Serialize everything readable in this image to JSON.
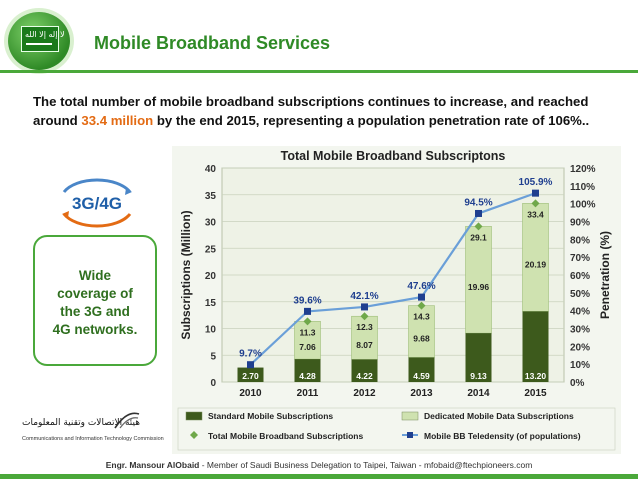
{
  "header": {
    "title": "Mobile Broadband Services",
    "flag_text": "لا إله إلا الله"
  },
  "intro": {
    "text_before": "The total number of mobile broadband subscriptions continues to increase, and reached around ",
    "highlight": "33.4 million",
    "text_after": " by the end 2015, representing a population penetration rate of 106%.."
  },
  "logo": {
    "text": "3G/4G"
  },
  "callout": {
    "lines": [
      "Wide",
      "coverage of",
      "the 3G and",
      "4G networks."
    ]
  },
  "org": {
    "arabic": "هيئة الاتصالات وتقنية المعلومات",
    "english": "Communications and Information Technology Commission"
  },
  "footer": {
    "name": "Engr. Mansour AlObaid",
    "rest": " - Member of Saudi Business Delegation to Taipei, Taiwan -   mfobaid@ftechpioneers.com"
  },
  "colors": {
    "brand_green": "#2f8a26",
    "standard_bar": "#3d5a1c",
    "data_bar": "#cfe2b0",
    "total_marker": "#6fa84a",
    "line": "#6a9fd8",
    "line_marker": "#1f3f8f",
    "highlight": "#e36b14"
  },
  "chart_data": {
    "type": "bar",
    "title": "Total Mobile Broadband Subscriptons",
    "categories": [
      "2010",
      "2011",
      "2012",
      "2013",
      "2014",
      "2015"
    ],
    "ylabel": "Subscriptions (Million)",
    "y2label": "Penetration (%)",
    "ylim": [
      0,
      40
    ],
    "yticks": [
      "0",
      "5",
      "10",
      "15",
      "20",
      "25",
      "30",
      "35",
      "40"
    ],
    "y2lim": [
      0,
      120
    ],
    "y2ticks": [
      "0%",
      "10%",
      "20%",
      "30%",
      "40%",
      "50%",
      "60%",
      "70%",
      "80%",
      "90%",
      "100%",
      "110%",
      "120%"
    ],
    "stacked": true,
    "series": [
      {
        "name": "Standard Mobile Subscriptions",
        "values": [
          2.7,
          4.28,
          4.22,
          4.59,
          9.13,
          13.2
        ],
        "labels": [
          "2.70",
          "4.28",
          "4.22",
          "4.59",
          "9.13",
          "13.20"
        ]
      },
      {
        "name": "Dedicated Mobile Data Subscriptions",
        "values": [
          0,
          7.06,
          8.07,
          9.68,
          19.96,
          20.19
        ],
        "labels": [
          "",
          "7.06",
          "8.07",
          "9.68",
          "19.96",
          "20.19"
        ]
      },
      {
        "name": "Total Mobile Broadband Subscriptions",
        "values": [
          2.7,
          11.3,
          12.3,
          14.3,
          29.1,
          33.4
        ],
        "labels": [
          "",
          "11.3",
          "12.3",
          "14.3",
          "29.1",
          "33.4"
        ]
      },
      {
        "name": "Mobile BB Teledensity (of populations)",
        "axis": "right",
        "values": [
          9.7,
          39.6,
          42.1,
          47.6,
          94.5,
          105.9
        ],
        "labels": [
          "9.7%",
          "39.6%",
          "42.1%",
          "47.6%",
          "94.5%",
          "105.9%"
        ]
      }
    ],
    "legend": [
      "Standard Mobile Subscriptions",
      "Dedicated Mobile Data Subscriptions",
      "Total Mobile Broadband Subscriptions",
      "Mobile BB Teledensity (of populations)"
    ],
    "legend_position": "bottom",
    "grid": true
  }
}
